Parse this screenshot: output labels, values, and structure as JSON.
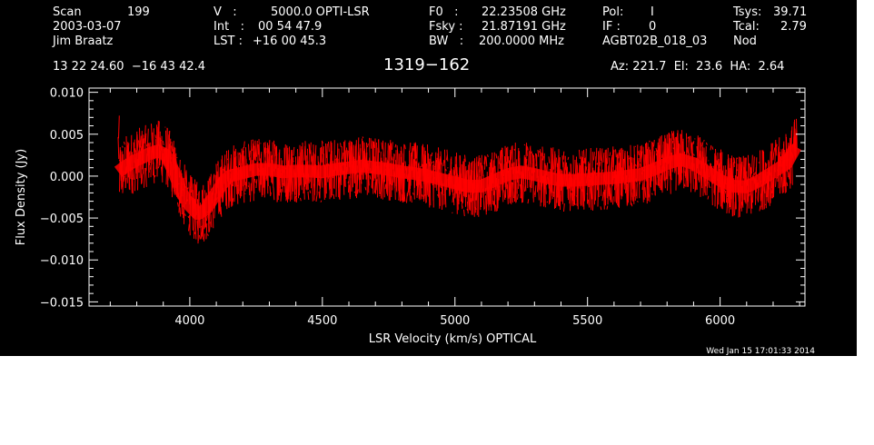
{
  "header": {
    "scan_label": "Scan",
    "scan_number": "199",
    "date": "2003-03-07",
    "observer": "Jim Braatz",
    "v_label": "V   :",
    "v_value": "5000.0 OPTI-LSR",
    "int_label": "Int   :",
    "int_value": "00 54 47.9",
    "lst_label": "LST :",
    "lst_value": "+16 00 45.3",
    "f0_label": "F0   :",
    "f0_value": "22.23508 GHz",
    "fsky_label": "Fsky :",
    "fsky_value": "21.87191 GHz",
    "bw_label": "BW   :",
    "bw_value": "200.0000 MHz",
    "pol_label": "Pol:",
    "pol_value": "I",
    "if_label": "IF :",
    "if_value": "0",
    "project": "AGBT02B_018_03",
    "tsys_label": "Tsys:",
    "tsys_value": "39.71",
    "tcal_label": "Tcal:",
    "tcal_value": "2.79",
    "mode": "Nod",
    "coords": "13 22 24.60  −16 43 42.4",
    "source": "1319−162",
    "az_el_ha": "Az: 221.7  El:  23.6  HA:  2.64"
  },
  "timestamp": "Wed Jan 15 17:01:33 2014",
  "colors": {
    "background": "#000000",
    "axes": "#ffffff",
    "series": "#ff0000",
    "page": "#ffffff"
  },
  "chart_data": {
    "type": "line",
    "title": "1319−162",
    "xlabel": "LSR Velocity (km/s) OPTICAL",
    "ylabel": "Flux Density (Jy)",
    "xlim": [
      3620,
      6320
    ],
    "ylim": [
      -0.0155,
      0.0105
    ],
    "x_ticks": [
      4000,
      4500,
      5000,
      5500,
      6000
    ],
    "x_tick_labels": [
      "4000",
      "4500",
      "5000",
      "5500",
      "6000"
    ],
    "y_ticks": [
      -0.015,
      -0.01,
      -0.005,
      0.0,
      0.005,
      0.01
    ],
    "y_tick_labels": [
      "−0.015",
      "−0.010",
      "−0.005",
      "0.000",
      "0.005",
      "0.010"
    ],
    "grid": false,
    "series": [
      {
        "x": [
          3730,
          3760,
          3790,
          3820,
          3850,
          3880,
          3910,
          3940,
          3970,
          4000,
          4030,
          4060,
          4090,
          4120,
          4150,
          4200,
          4250,
          4300,
          4350,
          4400,
          4450,
          4500,
          4550,
          4600,
          4650,
          4700,
          4750,
          4800,
          4850,
          4900,
          4950,
          5000,
          5050,
          5100,
          5150,
          5200,
          5250,
          5300,
          5350,
          5400,
          5450,
          5500,
          5550,
          5600,
          5650,
          5700,
          5750,
          5800,
          5850,
          5900,
          5950,
          6000,
          6050,
          6100,
          6150,
          6200,
          6250,
          6285
        ],
        "y": [
          0.0005,
          0.0012,
          0.0018,
          0.0022,
          0.0027,
          0.003,
          0.0025,
          0.0005,
          -0.002,
          -0.0035,
          -0.0045,
          -0.004,
          -0.0025,
          -0.001,
          0.0,
          0.0004,
          0.0008,
          0.0008,
          0.0005,
          0.0006,
          0.0006,
          0.0005,
          0.0008,
          0.001,
          0.0012,
          0.001,
          0.0008,
          0.0005,
          0.0003,
          0.0,
          -0.0004,
          -0.0008,
          -0.0012,
          -0.0012,
          -0.0005,
          0.0002,
          0.0005,
          0.0002,
          -0.0002,
          -0.0005,
          -0.0005,
          -0.0004,
          -0.0003,
          -0.0002,
          0.0,
          0.0002,
          0.0008,
          0.0015,
          0.002,
          0.0015,
          0.0005,
          -0.0005,
          -0.0012,
          -0.0013,
          -0.0005,
          0.0005,
          0.0015,
          0.0035
        ]
      }
    ]
  }
}
